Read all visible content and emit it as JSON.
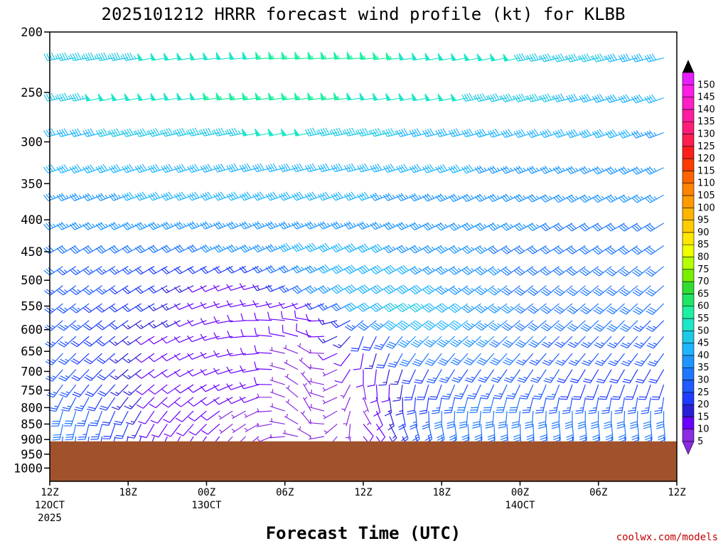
{
  "chart_data": {
    "type": "wind-barb-profile",
    "title": "2025101212 HRRR forecast wind profile (kt) for KLBB",
    "xlabel": "Forecast Time (UTC)",
    "credit": "coolwx.com/models",
    "x_ticks": [
      {
        "hour": 0,
        "label": "12Z",
        "sub": "12OCT",
        "sub2": "2025"
      },
      {
        "hour": 6,
        "label": "18Z",
        "sub": "",
        "sub2": ""
      },
      {
        "hour": 12,
        "label": "00Z",
        "sub": "13OCT",
        "sub2": ""
      },
      {
        "hour": 18,
        "label": "06Z",
        "sub": "",
        "sub2": ""
      },
      {
        "hour": 24,
        "label": "12Z",
        "sub": "",
        "sub2": ""
      },
      {
        "hour": 30,
        "label": "18Z",
        "sub": "",
        "sub2": ""
      },
      {
        "hour": 36,
        "label": "00Z",
        "sub": "14OCT",
        "sub2": ""
      },
      {
        "hour": 42,
        "label": "06Z",
        "sub": "",
        "sub2": ""
      },
      {
        "hour": 48,
        "label": "12Z",
        "sub": "",
        "sub2": ""
      }
    ],
    "x_range_hours": [
      0,
      48
    ],
    "y_range_hpa": [
      200,
      1050
    ],
    "y_ticks": [
      "200",
      "250",
      "300",
      "350",
      "400",
      "450",
      "500",
      "550",
      "600",
      "650",
      "700",
      "750",
      "800",
      "850",
      "900",
      "950",
      "1000"
    ],
    "surface_pressure_hpa": 906,
    "colors": {
      "ground": "#a0522d"
    },
    "colorbar": {
      "ticks": [
        "5",
        "10",
        "15",
        "20",
        "25",
        "30",
        "35",
        "40",
        "45",
        "50",
        "55",
        "60",
        "65",
        "70",
        "75",
        "80",
        "85",
        "90",
        "95",
        "100",
        "105",
        "110",
        "115",
        "120",
        "125",
        "130",
        "135",
        "140",
        "145",
        "150"
      ],
      "colors": [
        "#8b2be2",
        "#6a00ff",
        "#2a1fd6",
        "#1e3cff",
        "#1e5aff",
        "#1e78ff",
        "#1e96ff",
        "#1eb4ff",
        "#1ec8e6",
        "#1ee6c8",
        "#1ef0a0",
        "#1ee664",
        "#32dc32",
        "#78f000",
        "#b4ff00",
        "#f0ff00",
        "#ffe600",
        "#ffcc00",
        "#ffb400",
        "#ff9b00",
        "#ff8200",
        "#ff6400",
        "#ff3c00",
        "#ff1e1e",
        "#ff1e50",
        "#ff1e78",
        "#ff1ea0",
        "#ff1ec8",
        "#ff1ee6",
        "#e61eff"
      ]
    },
    "series": [
      {
        "pressure": 220,
        "dir": [
          260,
          260,
          260,
          262,
          265,
          265,
          265,
          262,
          260,
          258,
          255,
          255,
          255
        ],
        "speed": [
          45,
          45,
          48,
          50,
          52,
          55,
          55,
          52,
          50,
          48,
          45,
          42,
          40
        ]
      },
      {
        "pressure": 255,
        "dir": [
          258,
          258,
          260,
          262,
          262,
          262,
          262,
          260,
          258,
          255,
          255,
          252,
          250
        ],
        "speed": [
          45,
          48,
          50,
          52,
          55,
          55,
          52,
          50,
          48,
          45,
          42,
          40,
          40
        ]
      },
      {
        "pressure": 290,
        "dir": [
          255,
          255,
          255,
          258,
          258,
          258,
          258,
          255,
          255,
          252,
          252,
          250,
          250
        ],
        "speed": [
          40,
          42,
          45,
          45,
          48,
          48,
          45,
          42,
          40,
          40,
          38,
          38,
          36
        ]
      },
      {
        "pressure": 330,
        "dir": [
          250,
          250,
          252,
          252,
          255,
          255,
          255,
          252,
          250,
          248,
          248,
          245,
          245
        ],
        "speed": [
          38,
          38,
          40,
          40,
          42,
          42,
          40,
          38,
          38,
          36,
          35,
          35,
          35
        ]
      },
      {
        "pressure": 365,
        "dir": [
          248,
          248,
          250,
          250,
          250,
          250,
          250,
          248,
          245,
          245,
          242,
          242,
          240
        ],
        "speed": [
          36,
          36,
          38,
          38,
          38,
          38,
          38,
          36,
          35,
          35,
          35,
          33,
          33
        ]
      },
      {
        "pressure": 405,
        "dir": [
          245,
          245,
          245,
          248,
          248,
          248,
          248,
          245,
          242,
          242,
          240,
          240,
          238
        ],
        "speed": [
          33,
          33,
          35,
          35,
          36,
          36,
          35,
          35,
          33,
          33,
          32,
          32,
          30
        ]
      },
      {
        "pressure": 440,
        "dir": [
          240,
          240,
          242,
          245,
          245,
          248,
          245,
          242,
          240,
          238,
          238,
          236,
          235
        ],
        "speed": [
          30,
          30,
          32,
          32,
          34,
          40,
          40,
          35,
          33,
          32,
          30,
          30,
          30
        ]
      },
      {
        "pressure": 475,
        "dir": [
          235,
          238,
          240,
          242,
          245,
          245,
          242,
          240,
          238,
          235,
          235,
          232,
          230
        ],
        "speed": [
          28,
          26,
          22,
          18,
          20,
          35,
          40,
          38,
          35,
          32,
          30,
          30,
          28
        ]
      },
      {
        "pressure": 510,
        "dir": [
          232,
          235,
          240,
          245,
          255,
          240,
          240,
          238,
          235,
          232,
          230,
          230,
          228
        ],
        "speed": [
          26,
          24,
          20,
          12,
          10,
          30,
          40,
          40,
          35,
          32,
          30,
          28,
          28
        ]
      },
      {
        "pressure": 545,
        "dir": [
          230,
          235,
          240,
          250,
          260,
          250,
          240,
          238,
          235,
          232,
          230,
          228,
          225
        ],
        "speed": [
          25,
          22,
          18,
          10,
          8,
          12,
          38,
          45,
          38,
          33,
          30,
          28,
          28
        ]
      },
      {
        "pressure": 580,
        "dir": [
          228,
          232,
          238,
          250,
          270,
          280,
          230,
          232,
          232,
          230,
          228,
          225,
          225
        ],
        "speed": [
          25,
          22,
          15,
          10,
          10,
          8,
          25,
          42,
          38,
          32,
          28,
          28,
          26
        ]
      },
      {
        "pressure": 615,
        "dir": [
          225,
          230,
          238,
          250,
          270,
          290,
          200,
          225,
          228,
          225,
          225,
          222,
          220
        ],
        "speed": [
          25,
          20,
          12,
          10,
          10,
          8,
          18,
          35,
          35,
          30,
          26,
          25,
          25
        ]
      },
      {
        "pressure": 655,
        "dir": [
          222,
          228,
          235,
          248,
          265,
          300,
          190,
          215,
          222,
          222,
          220,
          218,
          215
        ],
        "speed": [
          25,
          20,
          12,
          10,
          8,
          6,
          10,
          28,
          30,
          28,
          25,
          25,
          25
        ]
      },
      {
        "pressure": 695,
        "dir": [
          220,
          225,
          235,
          245,
          260,
          310,
          180,
          205,
          215,
          215,
          212,
          210,
          210
        ],
        "speed": [
          25,
          20,
          12,
          8,
          8,
          6,
          8,
          20,
          25,
          25,
          22,
          22,
          22
        ]
      },
      {
        "pressure": 735,
        "dir": [
          215,
          220,
          230,
          240,
          255,
          320,
          170,
          195,
          205,
          205,
          200,
          200,
          198
        ],
        "speed": [
          25,
          20,
          10,
          8,
          8,
          6,
          6,
          18,
          25,
          25,
          22,
          22,
          22
        ]
      },
      {
        "pressure": 770,
        "dir": [
          205,
          210,
          225,
          235,
          250,
          330,
          160,
          185,
          195,
          195,
          190,
          190,
          188
        ],
        "speed": [
          28,
          22,
          10,
          8,
          8,
          5,
          6,
          20,
          28,
          28,
          25,
          25,
          25
        ]
      },
      {
        "pressure": 810,
        "dir": [
          195,
          200,
          215,
          230,
          245,
          330,
          150,
          175,
          185,
          185,
          180,
          182,
          180
        ],
        "speed": [
          30,
          25,
          12,
          8,
          6,
          5,
          6,
          25,
          30,
          30,
          28,
          28,
          28
        ]
      },
      {
        "pressure": 850,
        "dir": [
          190,
          195,
          210,
          225,
          240,
          320,
          140,
          165,
          175,
          178,
          175,
          175,
          175
        ],
        "speed": [
          30,
          25,
          12,
          8,
          6,
          5,
          8,
          25,
          30,
          30,
          28,
          30,
          30
        ]
      },
      {
        "pressure": 890,
        "dir": [
          185,
          190,
          200,
          215,
          230,
          300,
          140,
          160,
          170,
          172,
          170,
          170,
          170
        ],
        "speed": [
          28,
          22,
          10,
          8,
          6,
          5,
          8,
          20,
          25,
          25,
          22,
          25,
          25
        ]
      }
    ]
  }
}
